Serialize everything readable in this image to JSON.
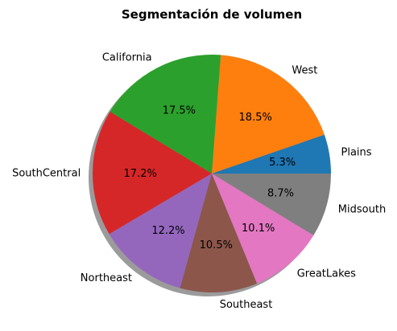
{
  "chart_data": {
    "type": "pie",
    "title": "Segmentación de volumen",
    "slices": [
      {
        "label": "Plains",
        "value": 5.3,
        "pct_label": "5.3%",
        "color": "#1f77b4"
      },
      {
        "label": "West",
        "value": 18.5,
        "pct_label": "18.5%",
        "color": "#ff7f0e"
      },
      {
        "label": "California",
        "value": 17.5,
        "pct_label": "17.5%",
        "color": "#2ca02c"
      },
      {
        "label": "SouthCentral",
        "value": 17.2,
        "pct_label": "17.2%",
        "color": "#d62728"
      },
      {
        "label": "Northeast",
        "value": 12.2,
        "pct_label": "12.2%",
        "color": "#9467bd"
      },
      {
        "label": "Southeast",
        "value": 10.5,
        "pct_label": "10.5%",
        "color": "#8c564b"
      },
      {
        "label": "GreatLakes",
        "value": 10.1,
        "pct_label": "10.1%",
        "color": "#e377c2"
      },
      {
        "label": "Midsouth",
        "value": 8.7,
        "pct_label": "8.7%",
        "color": "#7f7f7f"
      }
    ],
    "start_angle_deg": 0,
    "direction": "counterclockwise",
    "shadow": true,
    "legend": "none"
  }
}
